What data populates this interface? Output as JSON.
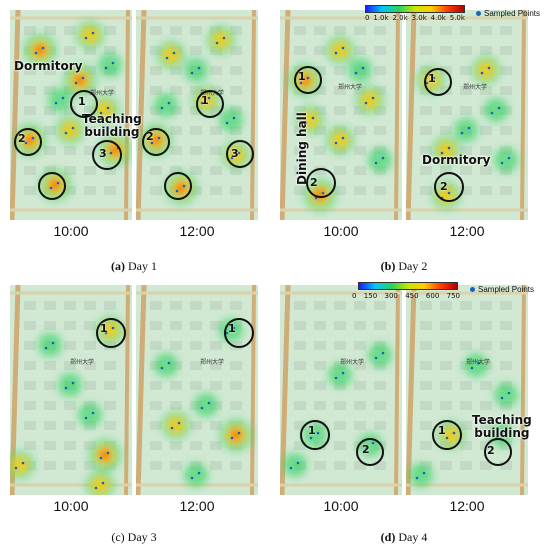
{
  "figure": {
    "captions": [
      {
        "letter": "(a)",
        "text": "Day 1"
      },
      {
        "letter": "(b)",
        "text": "Day 2"
      },
      {
        "letter": "(c)",
        "text": "Day 3"
      },
      {
        "letter": "(d)",
        "text": "Day 4"
      }
    ],
    "times": [
      "10:00",
      "12:00",
      "10:00",
      "12:00",
      "10:00",
      "12:00",
      "10:00",
      "12:00"
    ],
    "campus_name": "郑州大学",
    "legend_top": {
      "ticks": [
        "0",
        "1.0k",
        "2.0k",
        "3.0k",
        "4.0k",
        "5.0k"
      ],
      "points_label": "Sampled Points"
    },
    "legend_bottom": {
      "ticks": [
        "0",
        "150",
        "300",
        "450",
        "600",
        "750"
      ],
      "points_label": "Sampled Points"
    },
    "annotations": {
      "dormitory": "Dormitory",
      "teaching_building_line1": "Teaching",
      "teaching_building_line2": "building",
      "dining_hall": "Dining hall",
      "n1": "1",
      "n2": "2",
      "n3": "3"
    },
    "colors": {
      "low": "#28d25a",
      "mid": "#ffcc00",
      "high": "#ff3c00",
      "peak": "#b40000",
      "road": "#e8a87c",
      "point": "#1565c0"
    }
  }
}
